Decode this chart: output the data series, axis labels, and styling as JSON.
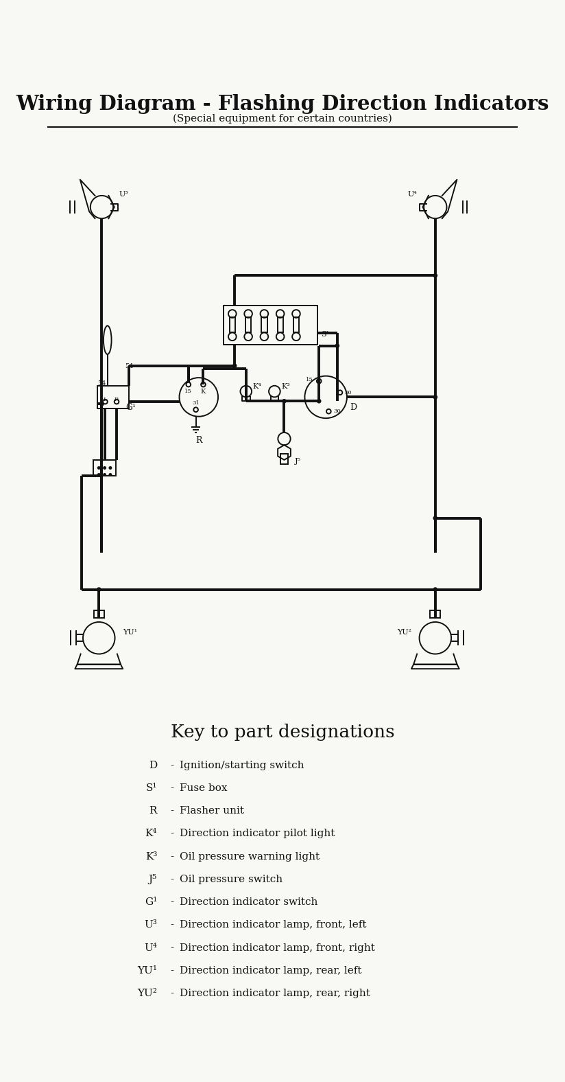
{
  "title": "Wiring Diagram - Flashing Direction Indicators",
  "subtitle": "(Special equipment for certain countries)",
  "key_title": "Key to part designations",
  "key_items": [
    [
      "D",
      "Ignition/starting switch"
    ],
    [
      "S¹",
      "Fuse box"
    ],
    [
      "R",
      "Flasher unit"
    ],
    [
      "K⁴",
      "Direction indicator pilot light"
    ],
    [
      "K³",
      "Oil pressure warning light"
    ],
    [
      "J⁵",
      "Oil pressure switch"
    ],
    [
      "G¹",
      "Direction indicator switch"
    ],
    [
      "U³",
      "Direction indicator lamp, front, left"
    ],
    [
      "U⁴",
      "Direction indicator lamp, front, right"
    ],
    [
      "YU¹",
      "Direction indicator lamp, rear, left"
    ],
    [
      "YU²",
      "Direction indicator lamp, rear, right"
    ]
  ],
  "bg_color": "#f8f8f4",
  "line_color": "#111111",
  "title_color": "#111111"
}
